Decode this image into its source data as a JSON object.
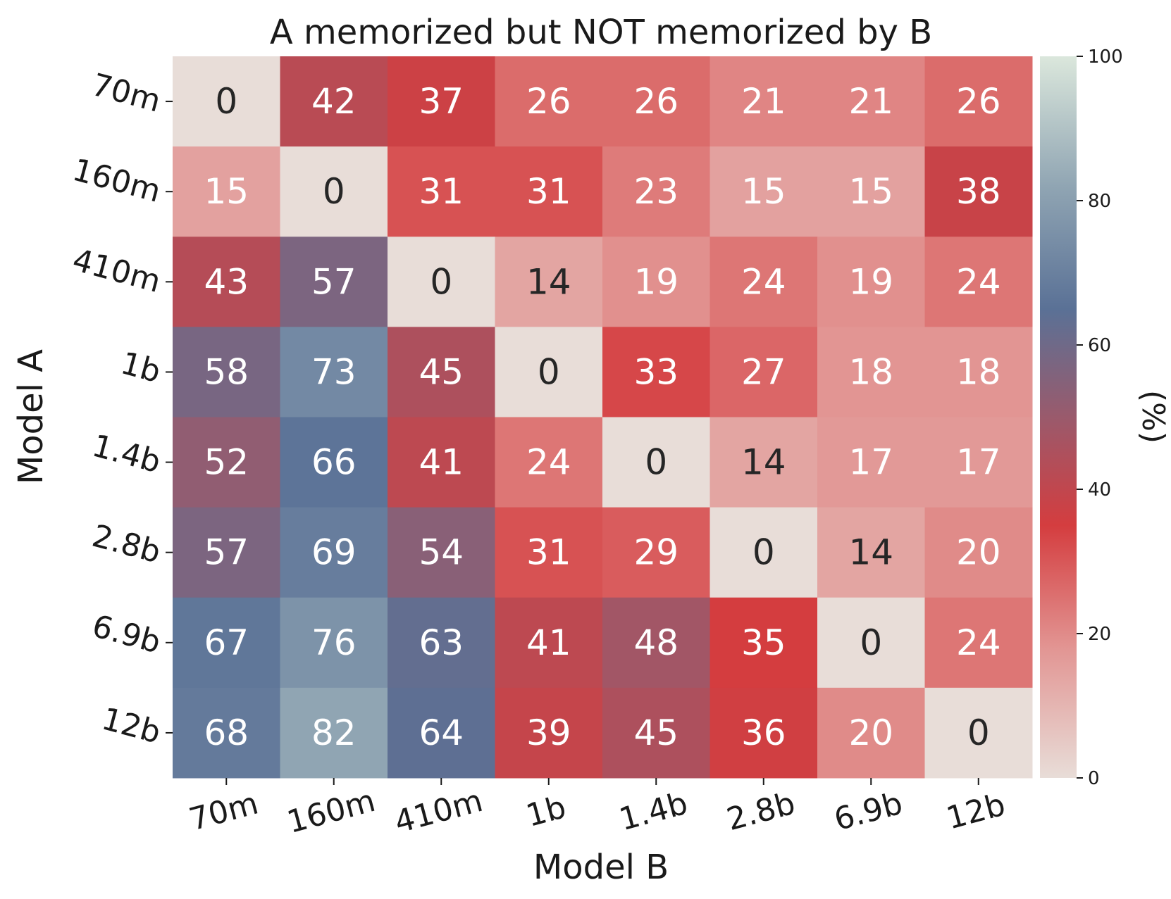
{
  "chart_data": {
    "type": "heatmap",
    "title": "A memorized but NOT memorized by B",
    "xlabel": "Model B",
    "ylabel": "Model A",
    "x_categories": [
      "70m",
      "160m",
      "410m",
      "1b",
      "1.4b",
      "2.8b",
      "6.9b",
      "12b"
    ],
    "y_categories": [
      "70m",
      "160m",
      "410m",
      "1b",
      "1.4b",
      "2.8b",
      "6.9b",
      "12b"
    ],
    "values": [
      [
        0,
        42,
        37,
        26,
        26,
        21,
        21,
        26
      ],
      [
        15,
        0,
        31,
        31,
        23,
        15,
        15,
        38
      ],
      [
        43,
        57,
        0,
        14,
        19,
        24,
        19,
        24
      ],
      [
        58,
        73,
        45,
        0,
        33,
        27,
        18,
        18
      ],
      [
        52,
        66,
        41,
        24,
        0,
        14,
        17,
        17
      ],
      [
        57,
        69,
        54,
        31,
        29,
        0,
        14,
        20
      ],
      [
        67,
        76,
        63,
        41,
        48,
        35,
        0,
        24
      ],
      [
        68,
        82,
        64,
        39,
        45,
        36,
        20,
        0
      ]
    ],
    "colorbar": {
      "label": "(%)",
      "range": [
        0,
        100
      ],
      "ticks": [
        0,
        20,
        40,
        60,
        80,
        100
      ],
      "colors": [
        {
          "value": 0,
          "color": "#e8ddd8"
        },
        {
          "value": 18,
          "color": "#e29593"
        },
        {
          "value": 35,
          "color": "#d43d3f"
        },
        {
          "value": 50,
          "color": "#9a5a6c"
        },
        {
          "value": 65,
          "color": "#5a7196"
        },
        {
          "value": 82,
          "color": "#90a5b3"
        },
        {
          "value": 100,
          "color": "#dbe7dc"
        }
      ],
      "text_dark_below": 15
    }
  }
}
